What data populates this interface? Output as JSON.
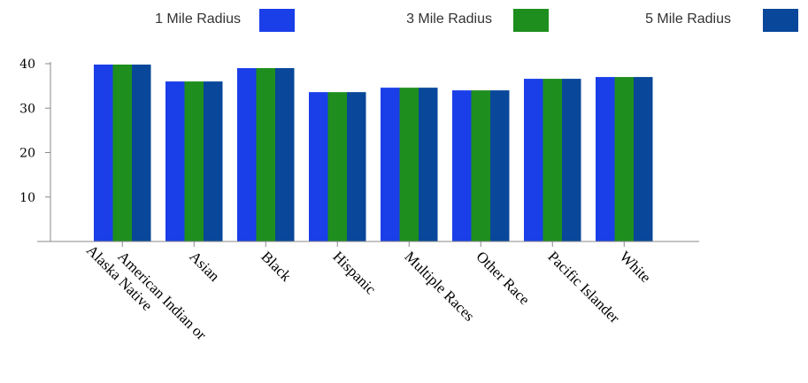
{
  "chart_data": {
    "type": "bar",
    "categories": [
      [
        "American Indian or",
        "Alaska Native"
      ],
      [
        "Asian"
      ],
      [
        "Black"
      ],
      [
        "Hispanic"
      ],
      [
        "Multiple Races"
      ],
      [
        "Other Race"
      ],
      [
        "Pacific Islander"
      ],
      [
        "White"
      ]
    ],
    "series": [
      {
        "name": "1 Mile Radius",
        "color": "#1a3ee8",
        "values": [
          39.8,
          36.0,
          39.0,
          33.6,
          34.6,
          34.0,
          36.6,
          37.0
        ]
      },
      {
        "name": "3 Mile Radius",
        "color": "#1e8e1e",
        "values": [
          39.8,
          36.0,
          39.0,
          33.6,
          34.6,
          34.0,
          36.6,
          37.0
        ]
      },
      {
        "name": "5 Mile Radius",
        "color": "#08479a",
        "values": [
          39.8,
          36.0,
          39.0,
          33.6,
          34.6,
          34.0,
          36.6,
          37.0
        ]
      }
    ],
    "yticks": [
      10,
      20,
      30,
      40
    ],
    "ylim": [
      0,
      40
    ],
    "legend_position": "top",
    "grid": false,
    "title": "",
    "xlabel": "",
    "ylabel": ""
  }
}
